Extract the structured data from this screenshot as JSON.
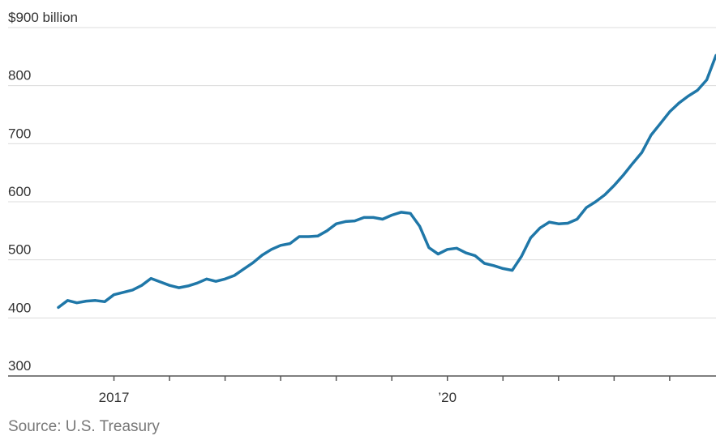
{
  "chart_data": {
    "type": "line",
    "title": "",
    "xlabel": "",
    "ylabel": "",
    "y_unit_label": "$900 billion",
    "y_ticks": [
      900,
      800,
      700,
      600,
      500,
      400,
      300
    ],
    "y_tick_labels": [
      "$900 billion",
      "800",
      "700",
      "600",
      "500",
      "400",
      "300"
    ],
    "ylim": [
      300,
      900
    ],
    "xlim": [
      "2016-07",
      "2022-06"
    ],
    "x_tick_dates": [
      "2017-01",
      "2017-07",
      "2018-01",
      "2018-07",
      "2019-01",
      "2019-07",
      "2020-01",
      "2020-07",
      "2021-01",
      "2021-07",
      "2022-01"
    ],
    "x_tick_labels": [
      {
        "date": "2017-01",
        "label": "2017"
      },
      {
        "date": "2020-01",
        "label": "’20"
      }
    ],
    "grid": true,
    "series": [
      {
        "color": "#1f77a8",
        "x": [
          "2016-07",
          "2016-08",
          "2016-09",
          "2016-10",
          "2016-11",
          "2016-12",
          "2017-01",
          "2017-02",
          "2017-03",
          "2017-04",
          "2017-05",
          "2017-06",
          "2017-07",
          "2017-08",
          "2017-09",
          "2017-10",
          "2017-11",
          "2017-12",
          "2018-01",
          "2018-02",
          "2018-03",
          "2018-04",
          "2018-05",
          "2018-06",
          "2018-07",
          "2018-08",
          "2018-09",
          "2018-10",
          "2018-11",
          "2018-12",
          "2019-01",
          "2019-02",
          "2019-03",
          "2019-04",
          "2019-05",
          "2019-06",
          "2019-07",
          "2019-08",
          "2019-09",
          "2019-10",
          "2019-11",
          "2019-12",
          "2020-01",
          "2020-02",
          "2020-03",
          "2020-04",
          "2020-05",
          "2020-06",
          "2020-07",
          "2020-08",
          "2020-09",
          "2020-10",
          "2020-11",
          "2020-12",
          "2021-01",
          "2021-02",
          "2021-03",
          "2021-04",
          "2021-05",
          "2021-06",
          "2021-07",
          "2021-08",
          "2021-09",
          "2021-10",
          "2021-11",
          "2021-12",
          "2022-01",
          "2022-02",
          "2022-03",
          "2022-04",
          "2022-05",
          "2022-06"
        ],
        "values": [
          418,
          430,
          426,
          429,
          430,
          428,
          440,
          444,
          448,
          456,
          468,
          462,
          456,
          452,
          455,
          460,
          467,
          463,
          467,
          473,
          484,
          495,
          508,
          518,
          525,
          528,
          540,
          540,
          541,
          550,
          562,
          566,
          567,
          573,
          573,
          570,
          577,
          582,
          580,
          558,
          521,
          510,
          518,
          520,
          512,
          507,
          494,
          490,
          485,
          482,
          506,
          538,
          555,
          565,
          562,
          563,
          570,
          590,
          600,
          612,
          628,
          646,
          666,
          685,
          715,
          735,
          755,
          770,
          782,
          792,
          810,
          852
        ]
      }
    ],
    "source": "Source: U.S. Treasury"
  }
}
